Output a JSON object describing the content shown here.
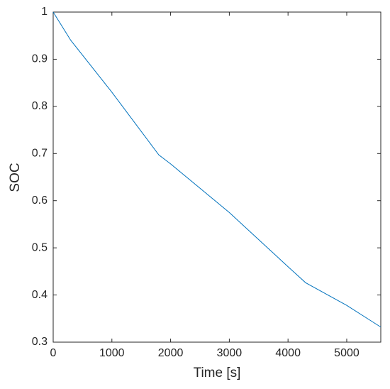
{
  "chart_data": {
    "type": "line",
    "x_label": "Time [s]",
    "y_label": "SOC",
    "x": [
      0,
      300,
      1000,
      1800,
      2000,
      3000,
      4000,
      4300,
      5000,
      5580
    ],
    "series": [
      {
        "color": "#0072bd",
        "values": [
          1.0,
          0.94,
          0.83,
          0.697,
          0.678,
          0.575,
          0.46,
          0.426,
          0.378,
          0.332
        ]
      }
    ],
    "xlim": [
      0,
      5580
    ],
    "xticks": [
      0,
      1000,
      2000,
      3000,
      4000,
      5000
    ],
    "ylim": [
      0.3,
      1
    ],
    "yticks": [
      0.3,
      0.4,
      0.5,
      0.6,
      0.7,
      0.8,
      0.9,
      1
    ],
    "grid": false
  }
}
